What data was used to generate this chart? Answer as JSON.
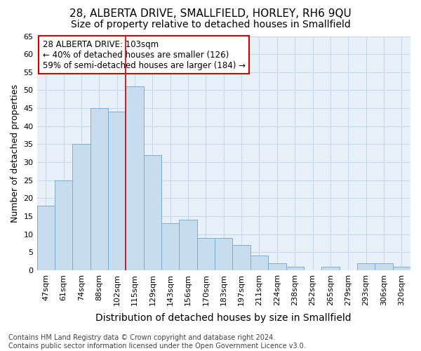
{
  "title": "28, ALBERTA DRIVE, SMALLFIELD, HORLEY, RH6 9QU",
  "subtitle": "Size of property relative to detached houses in Smallfield",
  "xlabel": "Distribution of detached houses by size in Smallfield",
  "ylabel": "Number of detached properties",
  "categories": [
    "47sqm",
    "61sqm",
    "74sqm",
    "88sqm",
    "102sqm",
    "115sqm",
    "129sqm",
    "143sqm",
    "156sqm",
    "170sqm",
    "183sqm",
    "197sqm",
    "211sqm",
    "224sqm",
    "238sqm",
    "252sqm",
    "265sqm",
    "279sqm",
    "293sqm",
    "306sqm",
    "320sqm"
  ],
  "values": [
    18,
    25,
    35,
    45,
    44,
    51,
    32,
    13,
    14,
    9,
    9,
    7,
    4,
    2,
    1,
    0,
    1,
    0,
    2,
    2,
    1
  ],
  "bar_color": "#C8DCF0",
  "bar_edge_color": "#7BAFD4",
  "vline_x_index": 4.5,
  "vline_color": "#CC0000",
  "annotation_text": "28 ALBERTA DRIVE: 103sqm\n← 40% of detached houses are smaller (126)\n59% of semi-detached houses are larger (184) →",
  "annotation_box_color": "white",
  "annotation_box_edge_color": "#CC0000",
  "ylim": [
    0,
    65
  ],
  "yticks": [
    0,
    5,
    10,
    15,
    20,
    25,
    30,
    35,
    40,
    45,
    50,
    55,
    60,
    65
  ],
  "grid_color": "#C5D8EC",
  "bg_color": "#E8F1FA",
  "footer": "Contains HM Land Registry data © Crown copyright and database right 2024.\nContains public sector information licensed under the Open Government Licence v3.0.",
  "title_fontsize": 11,
  "subtitle_fontsize": 10,
  "xlabel_fontsize": 10,
  "ylabel_fontsize": 9,
  "tick_fontsize": 8,
  "footer_fontsize": 7,
  "ann_fontsize": 8.5
}
